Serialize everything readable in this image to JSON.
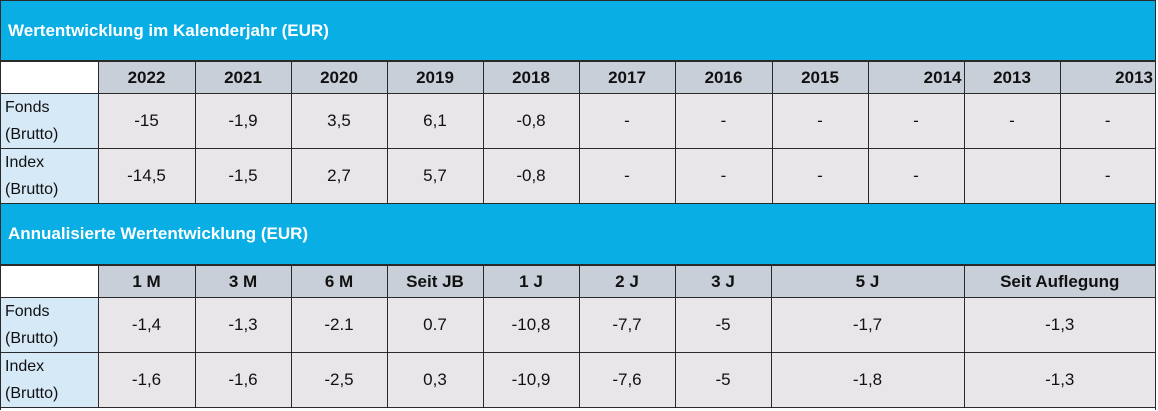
{
  "calendar": {
    "title": "Wertentwicklung im Kalenderjahr  (EUR)",
    "years": [
      "2022",
      "2021",
      "2020",
      "2019",
      "2018",
      "2017",
      "2016",
      "2015",
      "2014",
      "2013",
      "2013"
    ],
    "rows": [
      {
        "label_line1": "Fonds",
        "label_line2": "(Brutto)",
        "values": [
          "-15",
          "-1,9",
          "3,5",
          "6,1",
          "-0,8",
          "-",
          "-",
          "-",
          "-",
          "-",
          "-"
        ]
      },
      {
        "label_line1": "Index",
        "label_line2": "(Brutto)",
        "values": [
          "-14,5",
          "-1,5",
          "2,7",
          "5,7",
          "-0,8",
          "-",
          "-",
          "-",
          "-",
          "",
          "-"
        ]
      }
    ]
  },
  "annualized": {
    "title": "Annualisierte Wertentwicklung (EUR)",
    "periods": [
      "1 M",
      "3 M",
      "6 M",
      "Seit JB",
      "1 J",
      "2 J",
      "3 J",
      "5 J",
      "Seit Auflegung"
    ],
    "rows": [
      {
        "label_line1": "Fonds",
        "label_line2": "(Brutto)",
        "values": [
          "-1,4",
          "-1,3",
          "-2.1",
          "0.7",
          "-10,8",
          "-7,7",
          "-5",
          "-1,7",
          "-1,3"
        ]
      },
      {
        "label_line1": "Index",
        "label_line2": "(Brutto)",
        "values": [
          "-1,6",
          "-1,6",
          "-2,5",
          "0,3",
          "-10,9",
          "-7,6",
          "-5",
          "-1,8",
          "-1,3"
        ]
      }
    ]
  }
}
